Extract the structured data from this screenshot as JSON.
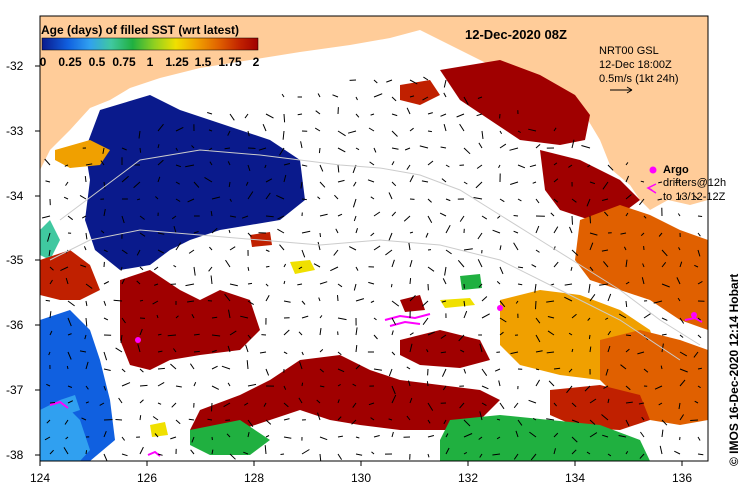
{
  "colorbar": {
    "title": "Age (days) of filled SST (wrt latest)",
    "ticks": [
      "0",
      "0.25",
      "0.5",
      "0.75",
      "1",
      "1.25",
      "1.5",
      "1.75",
      "2"
    ],
    "colors": [
      "#0a1a8c",
      "#1060e0",
      "#30a0f0",
      "#40c8a0",
      "#20b040",
      "#90d020",
      "#f0e000",
      "#f0a000",
      "#e06000",
      "#c02000",
      "#a00000"
    ]
  },
  "header": {
    "date": "12-Dec-2020 08Z"
  },
  "current_info": {
    "source": "NRT00 GSL",
    "time": "12-Dec 18:00Z",
    "scale": "0.5m/s (1kt 24h)"
  },
  "legend": {
    "argo_label": "Argo",
    "drifters_line1": "drifters@12h",
    "drifters_line2": "to 13/12-12Z",
    "argo_color": "#ff00ff",
    "drifter_color": "#ff00ff"
  },
  "axes": {
    "lat_ticks": [
      "-32",
      "-33",
      "-34",
      "-35",
      "-36",
      "-37",
      "-38"
    ],
    "lon_ticks": [
      "124",
      "126",
      "128",
      "130",
      "132",
      "134",
      "136"
    ]
  },
  "credit": "© IMOS 16-Dec-2020 12:14 Hobart",
  "colors": {
    "land": "#ffcc99",
    "ocean_unfilled": "#ffffff"
  }
}
